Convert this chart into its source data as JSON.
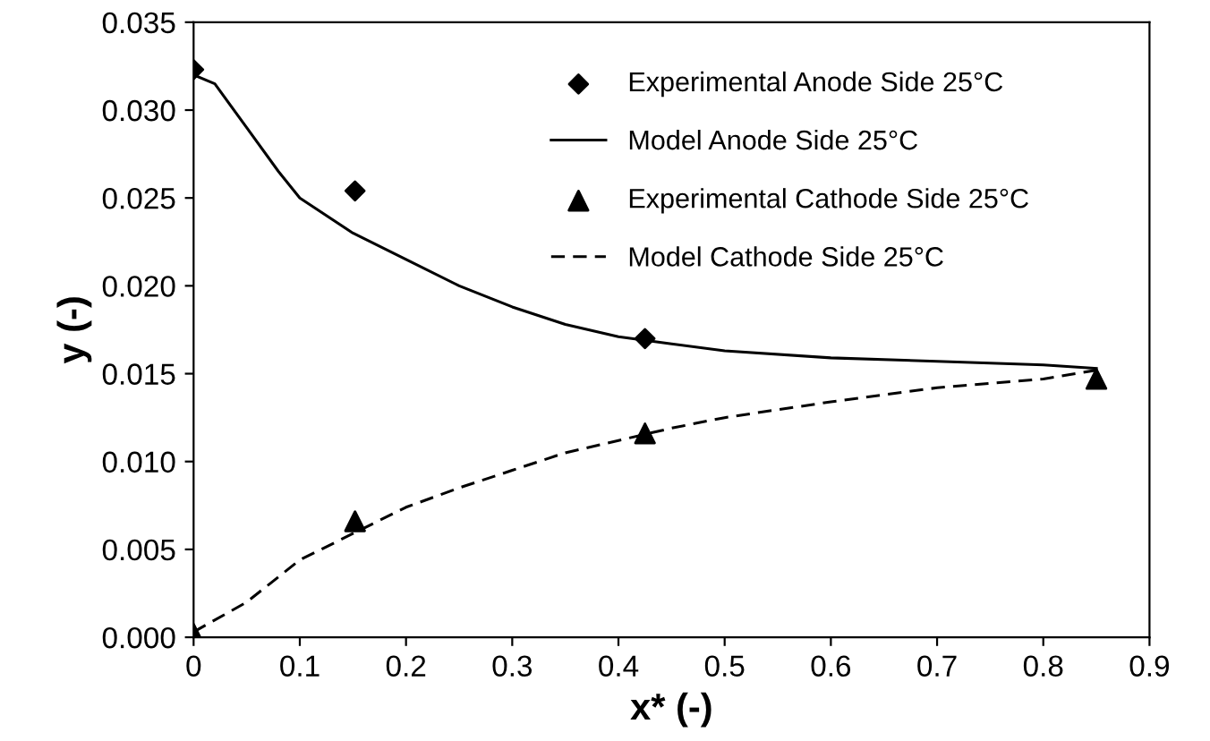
{
  "chart_data": {
    "type": "line",
    "xlabel": "x* (-)",
    "ylabel": "y (-)",
    "xlim": [
      0,
      0.9
    ],
    "xticks": [
      0,
      0.1,
      0.2,
      0.3,
      0.4,
      0.5,
      0.6,
      0.7,
      0.8,
      0.9
    ],
    "ylim": [
      0,
      0.035
    ],
    "yticks": [
      {
        "value": 0,
        "label": "0.000"
      },
      {
        "value": 0.005,
        "label": "0.005"
      },
      {
        "value": 0.01,
        "label": "0.010"
      },
      {
        "value": 0.015,
        "label": "0.015"
      },
      {
        "value": 0.02,
        "label": "0.020"
      },
      {
        "value": 0.025,
        "label": "0.025"
      },
      {
        "value": 0.03,
        "label": "0.030"
      },
      {
        "value": 0.035,
        "label": "0.035"
      }
    ],
    "grid": false,
    "legend": "top right",
    "series": [
      {
        "name": "Experimental Anode Side 25°C",
        "type": "scatter",
        "marker": "diamond",
        "color": "#000000",
        "x": [
          0,
          0.152,
          0.425
        ],
        "values": [
          0.0323,
          0.0254,
          0.017
        ]
      },
      {
        "name": "Model Anode Side 25°C",
        "line_style": "solid",
        "color": "#000000",
        "x": [
          0,
          0.02,
          0.05,
          0.08,
          0.1,
          0.15,
          0.2,
          0.25,
          0.3,
          0.35,
          0.4,
          0.45,
          0.5,
          0.6,
          0.7,
          0.8,
          0.85
        ],
        "values": [
          0.032,
          0.0315,
          0.029,
          0.0265,
          0.025,
          0.023,
          0.0215,
          0.02,
          0.0188,
          0.0178,
          0.0171,
          0.0167,
          0.0163,
          0.0159,
          0.0157,
          0.0155,
          0.0153
        ]
      },
      {
        "name": "Experimental Cathode Side 25°C",
        "type": "scatter",
        "marker": "triangle",
        "color": "#000000",
        "x": [
          0,
          0.152,
          0.425,
          0.85
        ],
        "values": [
          0.0002,
          0.0066,
          0.0116,
          0.0147
        ]
      },
      {
        "name": "Model Cathode Side 25°C",
        "line_style": "dashed",
        "color": "#000000",
        "x": [
          0,
          0.05,
          0.1,
          0.15,
          0.2,
          0.25,
          0.3,
          0.35,
          0.4,
          0.45,
          0.5,
          0.6,
          0.7,
          0.8,
          0.85
        ],
        "values": [
          0.0003,
          0.002,
          0.0044,
          0.0059,
          0.0074,
          0.0085,
          0.0095,
          0.0105,
          0.0112,
          0.0119,
          0.0125,
          0.0134,
          0.0142,
          0.0147,
          0.0152
        ]
      }
    ]
  }
}
